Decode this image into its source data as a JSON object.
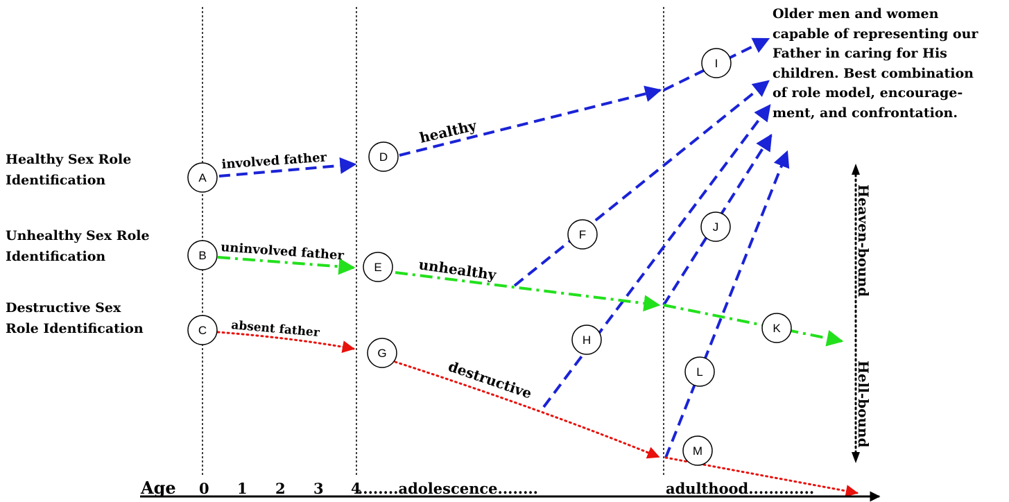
{
  "row_labels": {
    "healthy": [
      "Healthy Sex Role",
      "Identification"
    ],
    "unhealthy": [
      "Unhealthy Sex Role",
      "Identification"
    ],
    "destructive": [
      "Destructive Sex",
      "Role Identification"
    ]
  },
  "outcome_text": [
    "Older men and women",
    "capable of representing our",
    "Father in caring for His",
    "children. Best combination",
    "of role model, encourage-",
    "ment, and confrontation."
  ],
  "path_labels": {
    "involved": "involved father",
    "uninvolved": "uninvolved father",
    "absent": "absent father",
    "healthy": "healthy",
    "unhealthy": "unhealthy",
    "destructive": "destructive"
  },
  "nodes": [
    "A",
    "B",
    "C",
    "D",
    "E",
    "F",
    "G",
    "H",
    "I",
    "J",
    "K",
    "L",
    "M"
  ],
  "vertical_axis": {
    "top": "Heaven-bound",
    "bottom": "Hell-bound"
  },
  "age_axis": {
    "label": "Age",
    "ticks": [
      "0",
      "1",
      "2",
      "3",
      "4"
    ],
    "adolescence": "........adolescence........",
    "adulthood": "adulthood............."
  },
  "colors": {
    "healthy": "#1a23d6",
    "unhealthy": "#22e01c",
    "destructive": "#e8110c",
    "ink": "#000000"
  }
}
